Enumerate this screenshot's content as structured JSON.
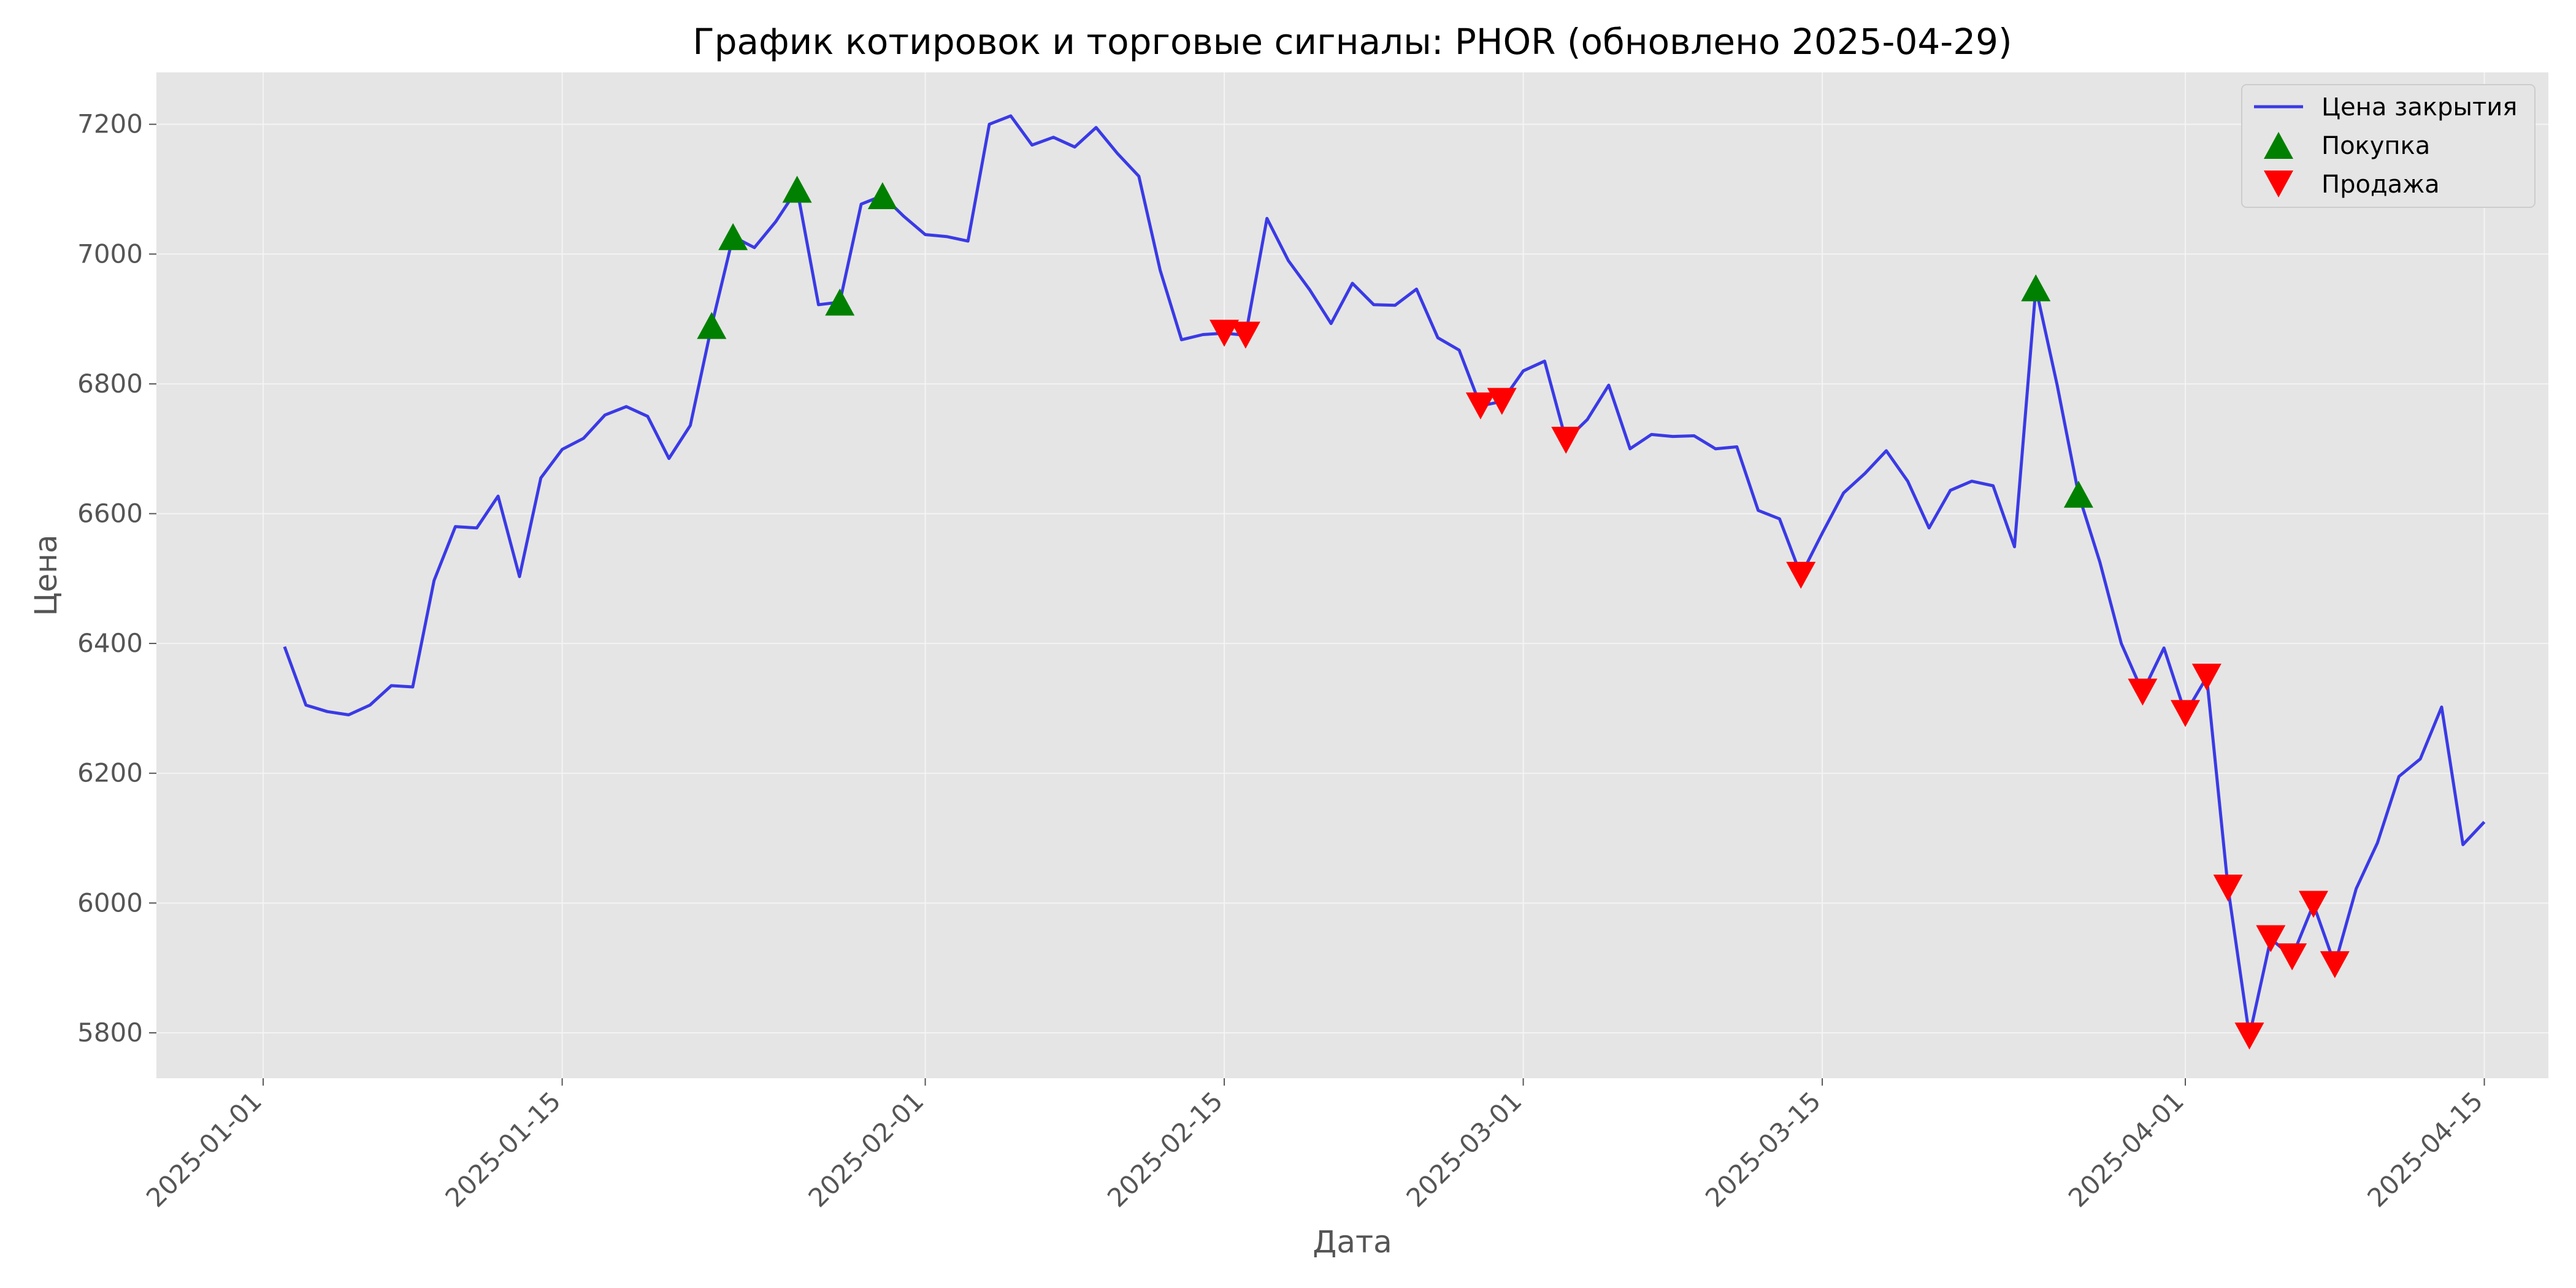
{
  "chart_data": {
    "type": "line",
    "title": "График котировок и торговые сигналы: PHOR (обновлено 2025-04-29)",
    "xlabel": "Дата",
    "ylabel": "Цена",
    "xlim": [
      "2024-12-27",
      "2025-04-18"
    ],
    "ylim": [
      5730,
      7280
    ],
    "grid": true,
    "legend_position": "top-right",
    "x_ticks": [
      "2025-01-01",
      "2025-01-15",
      "2025-02-01",
      "2025-02-15",
      "2025-03-01",
      "2025-03-15",
      "2025-04-01",
      "2025-04-15"
    ],
    "y_ticks": [
      5800,
      6000,
      6200,
      6400,
      6600,
      6800,
      7000,
      7200
    ],
    "colors": {
      "close": "#3a3ae6",
      "buy": "#008000",
      "sell": "#ff0000",
      "plot_bg": "#e5e5e5",
      "grid": "#f4f4f4"
    },
    "series": [
      {
        "name": "Цена закрытия",
        "kind": "line",
        "points": [
          [
            "2025-01-02",
            6395
          ],
          [
            "2025-01-03",
            6305
          ],
          [
            "2025-01-04",
            6295
          ],
          [
            "2025-01-05",
            6290
          ],
          [
            "2025-01-06",
            6305
          ],
          [
            "2025-01-07",
            6335
          ],
          [
            "2025-01-08",
            6333
          ],
          [
            "2025-01-09",
            6497
          ],
          [
            "2025-01-10",
            6580
          ],
          [
            "2025-01-11",
            6578
          ],
          [
            "2025-01-12",
            6627
          ],
          [
            "2025-01-13",
            6503
          ],
          [
            "2025-01-14",
            6655
          ],
          [
            "2025-01-15",
            6699
          ],
          [
            "2025-01-16",
            6716
          ],
          [
            "2025-01-17",
            6752
          ],
          [
            "2025-01-18",
            6765
          ],
          [
            "2025-01-19",
            6750
          ],
          [
            "2025-01-20",
            6685
          ],
          [
            "2025-01-21",
            6736
          ],
          [
            "2025-01-22",
            6890
          ],
          [
            "2025-01-23",
            7027
          ],
          [
            "2025-01-24",
            7010
          ],
          [
            "2025-01-25",
            7050
          ],
          [
            "2025-01-26",
            7100
          ],
          [
            "2025-01-27",
            6922
          ],
          [
            "2025-01-28",
            6926
          ],
          [
            "2025-01-29",
            7077
          ],
          [
            "2025-01-30",
            7090
          ],
          [
            "2025-01-31",
            7058
          ],
          [
            "2025-02-01",
            7030
          ],
          [
            "2025-02-02",
            7027
          ],
          [
            "2025-02-03",
            7020
          ],
          [
            "2025-02-04",
            7200
          ],
          [
            "2025-02-05",
            7213
          ],
          [
            "2025-02-06",
            7168
          ],
          [
            "2025-02-07",
            7180
          ],
          [
            "2025-02-08",
            7165
          ],
          [
            "2025-02-09",
            7195
          ],
          [
            "2025-02-10",
            7155
          ],
          [
            "2025-02-11",
            7120
          ],
          [
            "2025-02-12",
            6975
          ],
          [
            "2025-02-13",
            6868
          ],
          [
            "2025-02-14",
            6876
          ],
          [
            "2025-02-15",
            6878
          ],
          [
            "2025-02-16",
            6875
          ],
          [
            "2025-02-17",
            7055
          ],
          [
            "2025-02-18",
            6990
          ],
          [
            "2025-02-19",
            6945
          ],
          [
            "2025-02-20",
            6893
          ],
          [
            "2025-02-21",
            6955
          ],
          [
            "2025-02-22",
            6922
          ],
          [
            "2025-02-23",
            6921
          ],
          [
            "2025-02-24",
            6946
          ],
          [
            "2025-02-25",
            6871
          ],
          [
            "2025-02-26",
            6852
          ],
          [
            "2025-02-27",
            6766
          ],
          [
            "2025-02-28",
            6773
          ],
          [
            "2025-03-01",
            6820
          ],
          [
            "2025-03-02",
            6835
          ],
          [
            "2025-03-03",
            6713
          ],
          [
            "2025-03-04",
            6745
          ],
          [
            "2025-03-05",
            6798
          ],
          [
            "2025-03-06",
            6700
          ],
          [
            "2025-03-07",
            6722
          ],
          [
            "2025-03-08",
            6719
          ],
          [
            "2025-03-09",
            6720
          ],
          [
            "2025-03-10",
            6700
          ],
          [
            "2025-03-11",
            6703
          ],
          [
            "2025-03-12",
            6605
          ],
          [
            "2025-03-13",
            6592
          ],
          [
            "2025-03-14",
            6505
          ],
          [
            "2025-03-15",
            6570
          ],
          [
            "2025-03-16",
            6632
          ],
          [
            "2025-03-17",
            6662
          ],
          [
            "2025-03-18",
            6697
          ],
          [
            "2025-03-19",
            6650
          ],
          [
            "2025-03-20",
            6578
          ],
          [
            "2025-03-21",
            6636
          ],
          [
            "2025-03-22",
            6650
          ],
          [
            "2025-03-23",
            6643
          ],
          [
            "2025-03-24",
            6549
          ],
          [
            "2025-03-25",
            6948
          ],
          [
            "2025-03-26",
            6798
          ],
          [
            "2025-03-27",
            6630
          ],
          [
            "2025-03-28",
            6525
          ],
          [
            "2025-03-29",
            6400
          ],
          [
            "2025-03-30",
            6325
          ],
          [
            "2025-03-31",
            6393
          ],
          [
            "2025-04-01",
            6292
          ],
          [
            "2025-04-02",
            6348
          ],
          [
            "2025-04-03",
            6023
          ],
          [
            "2025-04-04",
            5795
          ],
          [
            "2025-04-05",
            5945
          ],
          [
            "2025-04-06",
            5917
          ],
          [
            "2025-04-07",
            5998
          ],
          [
            "2025-04-08",
            5905
          ],
          [
            "2025-04-09",
            6022
          ],
          [
            "2025-04-10",
            6093
          ],
          [
            "2025-04-11",
            6195
          ],
          [
            "2025-04-12",
            6222
          ],
          [
            "2025-04-13",
            6302
          ],
          [
            "2025-04-14",
            6090
          ],
          [
            "2025-04-15",
            6125
          ]
        ]
      },
      {
        "name": "Покупка",
        "kind": "marker-up",
        "points": [
          [
            "2025-01-22",
            6890
          ],
          [
            "2025-01-23",
            7027
          ],
          [
            "2025-01-26",
            7100
          ],
          [
            "2025-01-28",
            6926
          ],
          [
            "2025-01-30",
            7090
          ],
          [
            "2025-03-25",
            6948
          ],
          [
            "2025-03-27",
            6630
          ]
        ]
      },
      {
        "name": "Продажа",
        "kind": "marker-down",
        "points": [
          [
            "2025-02-15",
            6878
          ],
          [
            "2025-02-16",
            6875
          ],
          [
            "2025-02-27",
            6766
          ],
          [
            "2025-02-28",
            6773
          ],
          [
            "2025-03-03",
            6713
          ],
          [
            "2025-03-14",
            6505
          ],
          [
            "2025-03-30",
            6325
          ],
          [
            "2025-04-01",
            6292
          ],
          [
            "2025-04-02",
            6348
          ],
          [
            "2025-04-03",
            6023
          ],
          [
            "2025-04-04",
            5795
          ],
          [
            "2025-04-05",
            5945
          ],
          [
            "2025-04-06",
            5917
          ],
          [
            "2025-04-07",
            5998
          ],
          [
            "2025-04-08",
            5905
          ]
        ]
      }
    ]
  }
}
